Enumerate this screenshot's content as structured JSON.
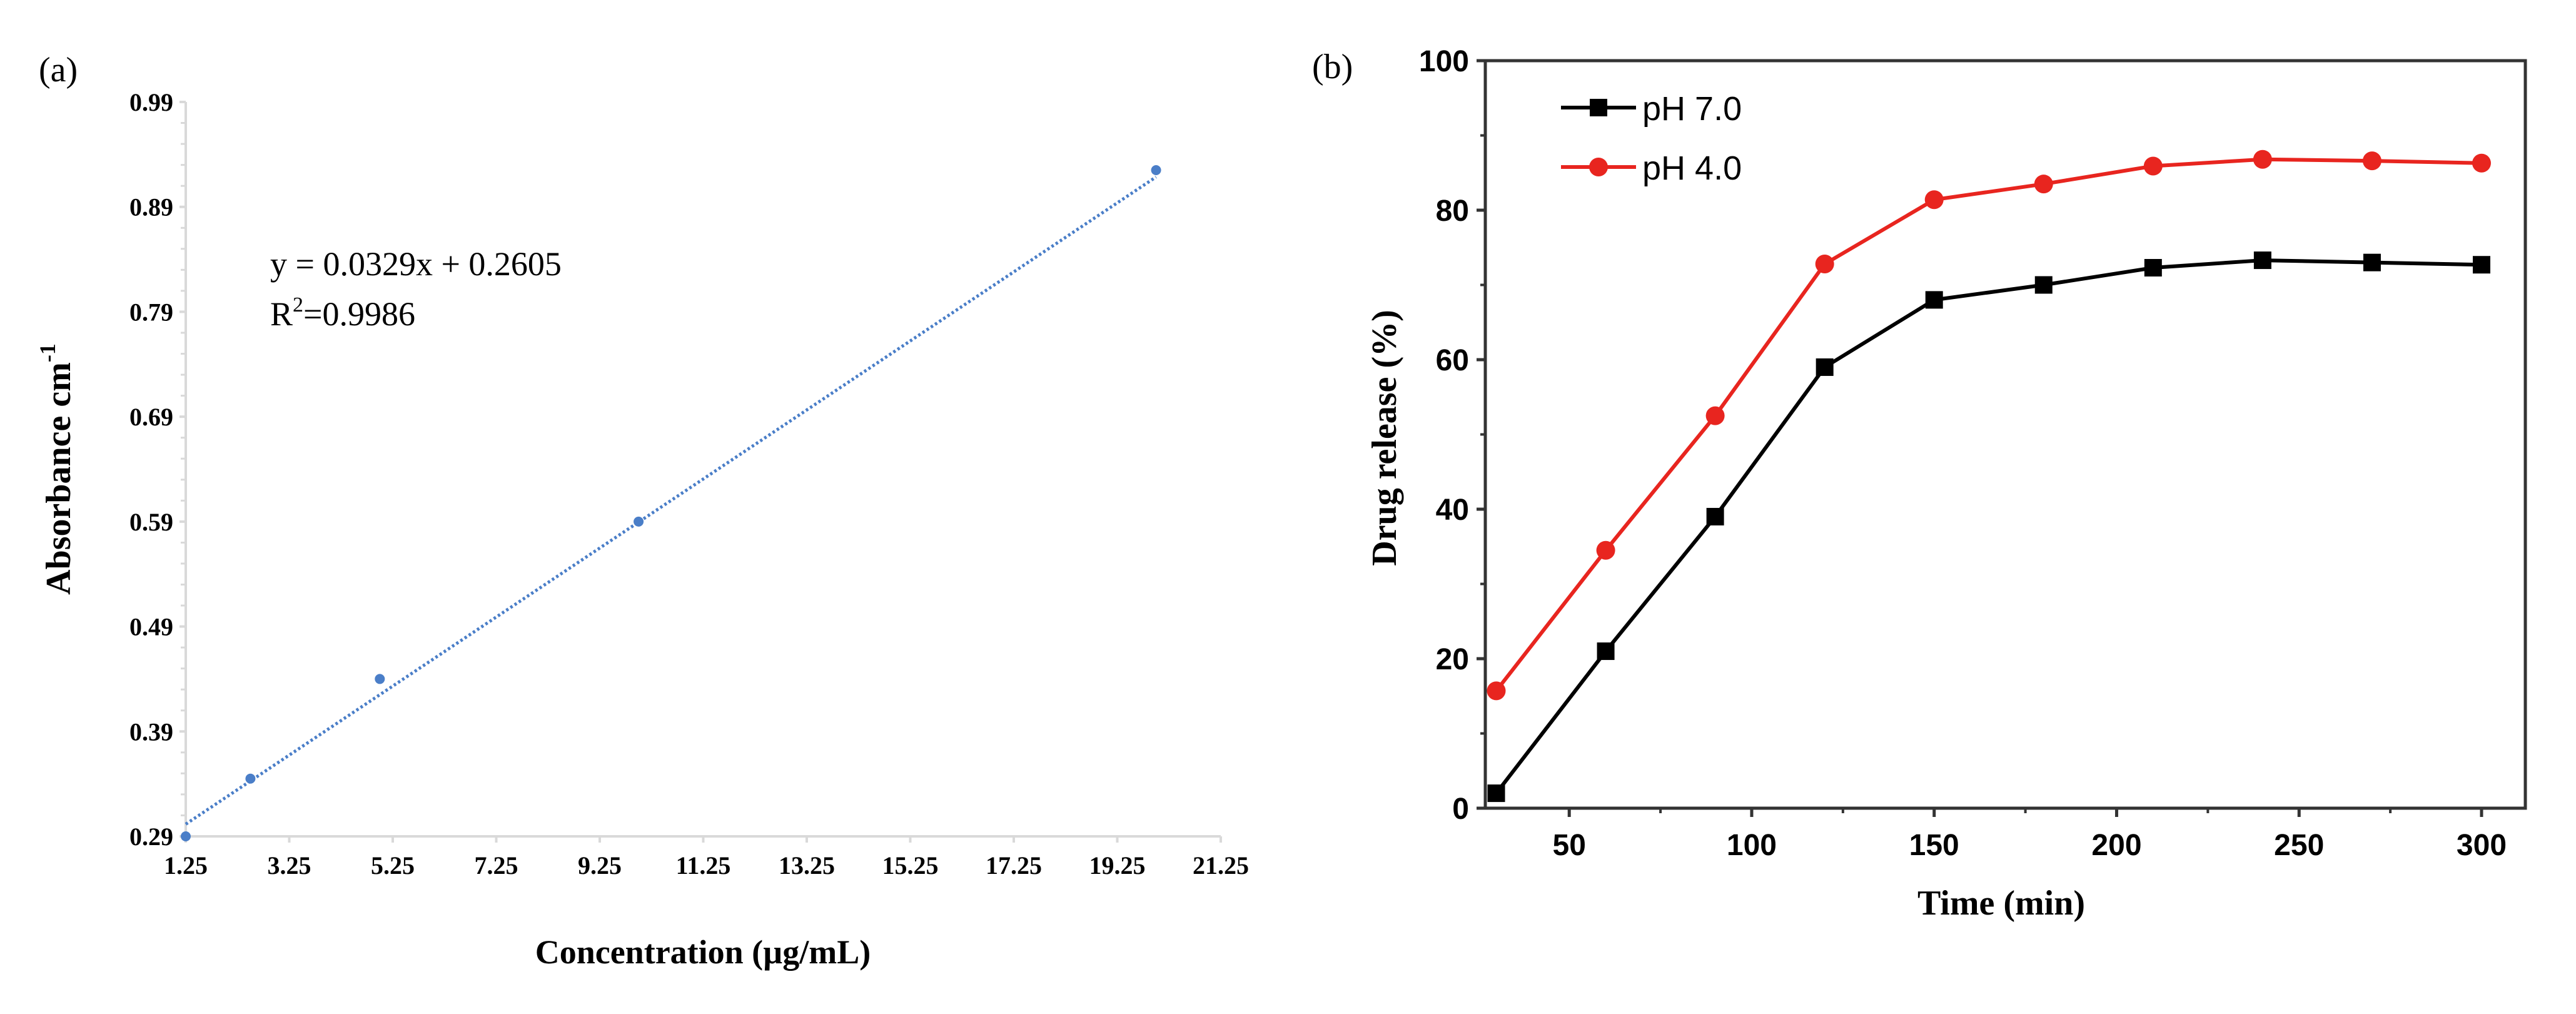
{
  "chart_data": [
    {
      "panel_label": "(a)",
      "type": "scatter",
      "xlabel": "Concentration (µg/mL)",
      "ylabel": "Absorbance cm",
      "ylabel_superscript": "-1",
      "xlim": [
        1.25,
        21.25
      ],
      "ylim": [
        0.29,
        0.99
      ],
      "xticks": [
        "1.25",
        "3.25",
        "5.25",
        "7.25",
        "9.25",
        "11.25",
        "13.25",
        "15.25",
        "17.25",
        "19.25",
        "21.25"
      ],
      "yticks": [
        "0.29",
        "0.39",
        "0.49",
        "0.59",
        "0.69",
        "0.79",
        "0.89",
        "0.99"
      ],
      "grid": false,
      "points": {
        "x": [
          1.25,
          2.5,
          5,
          10,
          20
        ],
        "y": [
          0.29,
          0.345,
          0.44,
          0.59,
          0.925
        ]
      },
      "trendline": {
        "slope": 0.0329,
        "intercept": 0.2605,
        "style": "dotted"
      },
      "equation": "y = 0.0329x + 0.2605",
      "r2_label": "R",
      "r2_superscript": "2",
      "r2_value": "=0.9986",
      "color": "#4a7ec8"
    },
    {
      "panel_label": "(b)",
      "type": "line",
      "xlabel": "Time (min)",
      "ylabel": "Drug release (%)",
      "xlim": [
        27,
        312
      ],
      "ylim": [
        0,
        100
      ],
      "xticks": [
        "50",
        "100",
        "150",
        "200",
        "250",
        "300"
      ],
      "yticks": [
        "0",
        "20",
        "40",
        "60",
        "80",
        "100"
      ],
      "grid": false,
      "legend_position": "top-left",
      "x": [
        30,
        60,
        90,
        120,
        150,
        180,
        210,
        240,
        270,
        300
      ],
      "series": [
        {
          "name": "pH 7.0",
          "marker": "square",
          "color": "#000000",
          "values": [
            2,
            21,
            39,
            59,
            68,
            70,
            72.3,
            73.3,
            73,
            72.7
          ]
        },
        {
          "name": "pH 4.0",
          "marker": "circle",
          "color": "#e8251f",
          "values": [
            15.7,
            34.5,
            52.5,
            72.8,
            81.4,
            83.5,
            85.9,
            86.8,
            86.6,
            86.3
          ]
        }
      ]
    }
  ]
}
